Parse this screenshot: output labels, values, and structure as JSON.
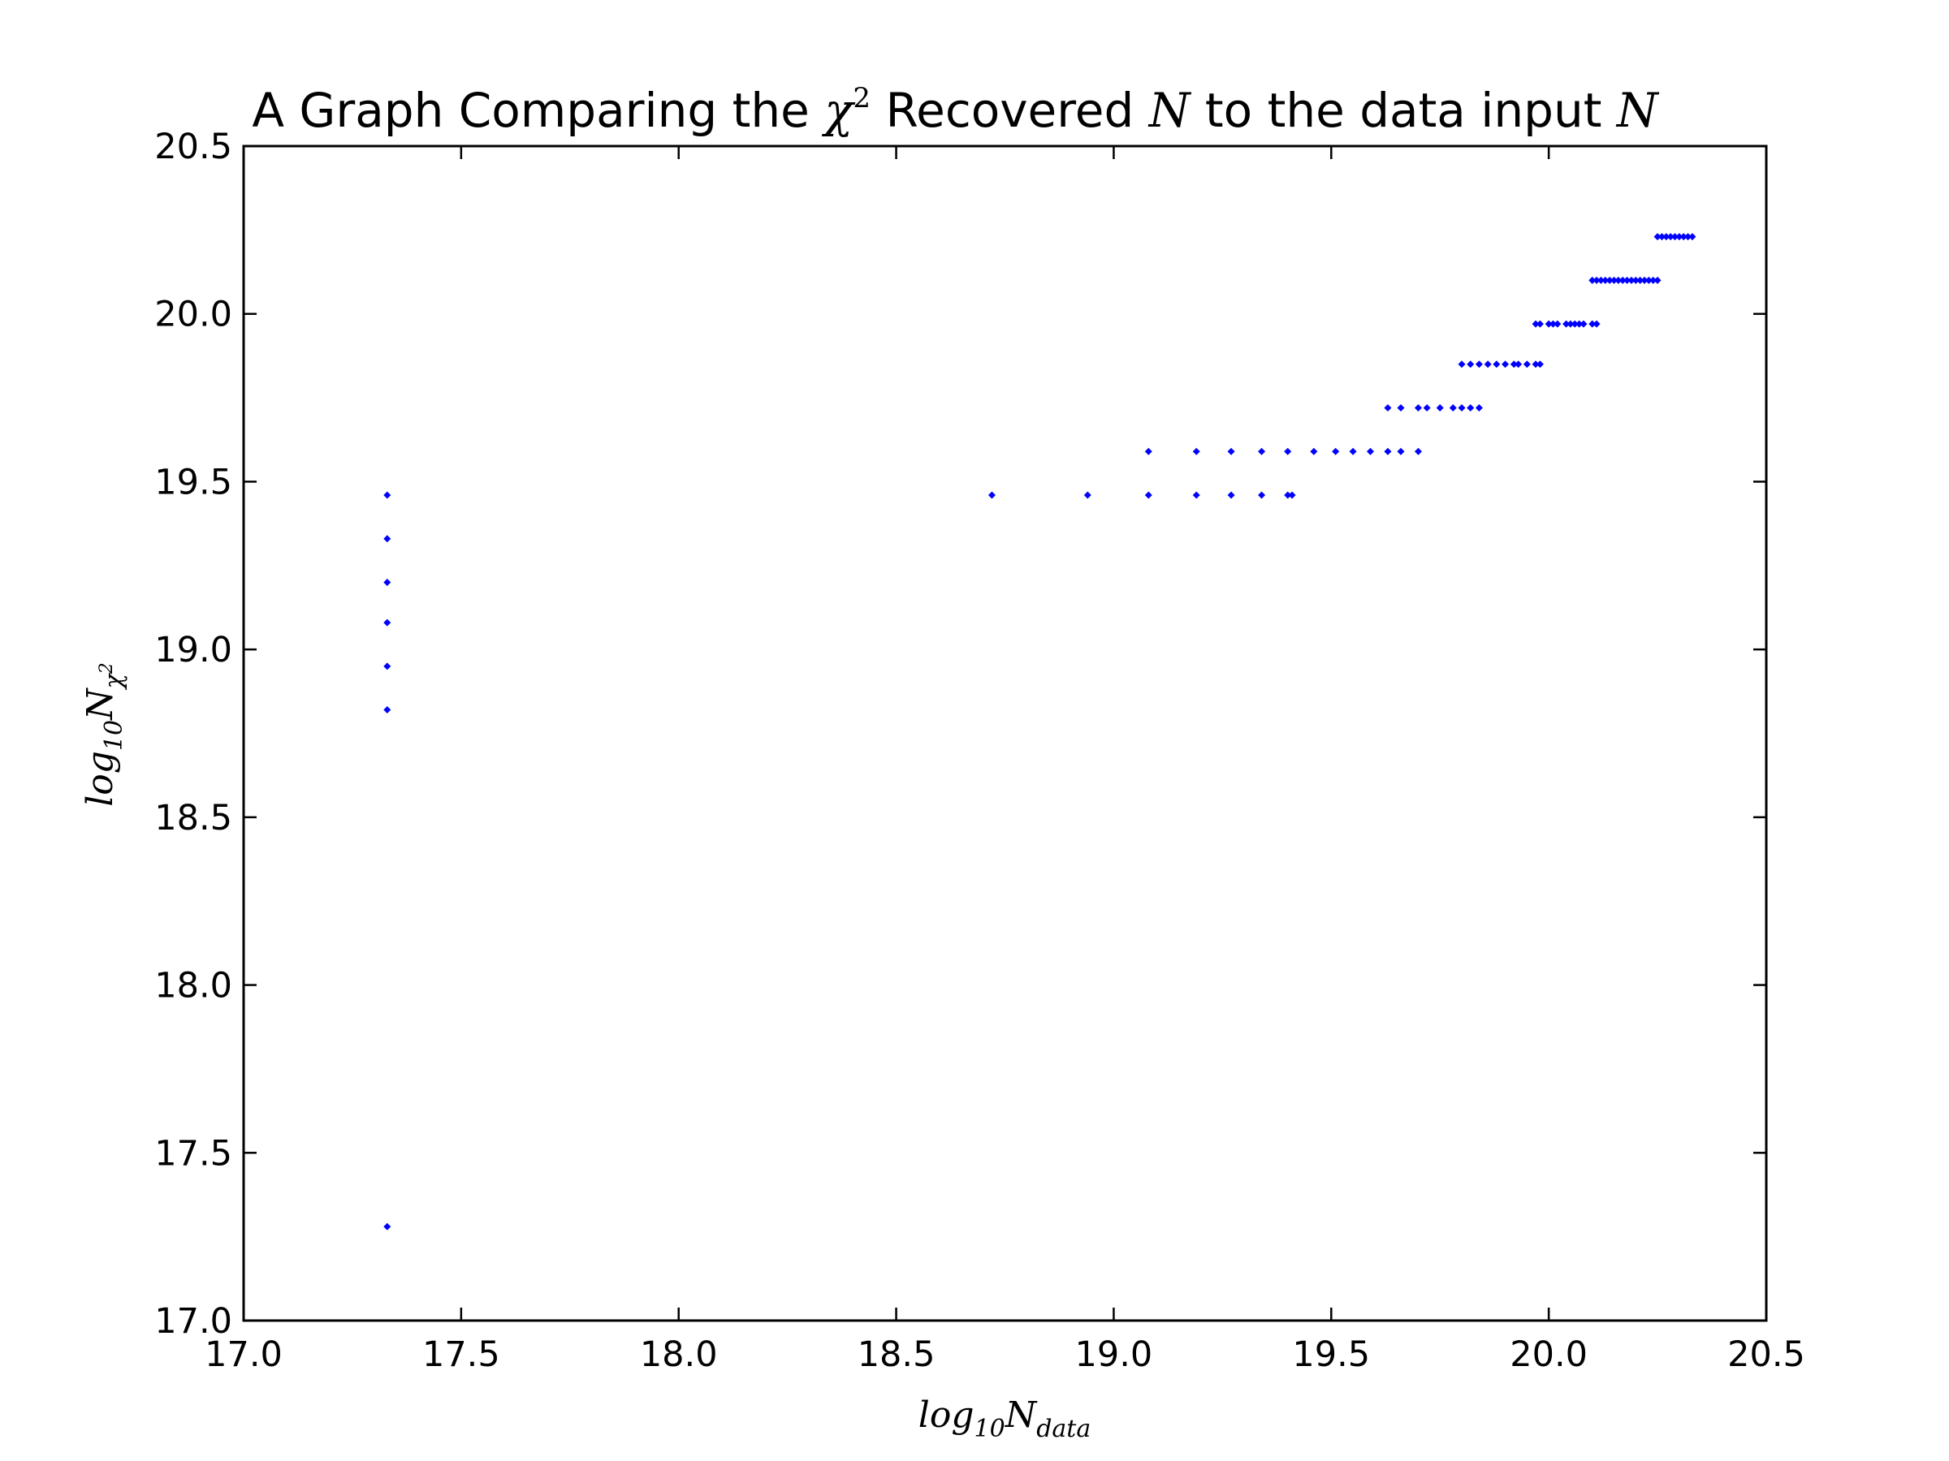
{
  "chart_data": {
    "type": "scatter",
    "title": {
      "prefix": "A Graph Comparing the ",
      "chi": "χ",
      "chi_sup": "2",
      "middle": " Recovered ",
      "N1": "N",
      "suffix": " to the data input ",
      "N2": "N"
    },
    "xlabel": {
      "base": "log",
      "sub1": "10",
      "var": "N",
      "sub2": "data"
    },
    "ylabel": {
      "base": "log",
      "sub1": "10",
      "var": "N",
      "sub2": "χ",
      "sup": "2"
    },
    "xlim": [
      17.0,
      20.5
    ],
    "ylim": [
      17.0,
      20.5
    ],
    "xticks": [
      17.0,
      17.5,
      18.0,
      18.5,
      19.0,
      19.5,
      20.0,
      20.5
    ],
    "yticks": [
      17.0,
      17.5,
      18.0,
      18.5,
      19.0,
      19.5,
      20.0,
      20.5
    ],
    "xtick_labels": [
      "17.0",
      "17.5",
      "18.0",
      "18.5",
      "19.0",
      "19.5",
      "20.0",
      "20.5"
    ],
    "ytick_labels": [
      "17.0",
      "17.5",
      "18.0",
      "18.5",
      "19.0",
      "19.5",
      "20.0",
      "20.5"
    ],
    "grid": false,
    "marker_color": "#0000ff",
    "series": [
      {
        "points": [
          [
            17.33,
            17.28
          ],
          [
            17.33,
            18.82
          ],
          [
            17.33,
            18.95
          ],
          [
            17.33,
            19.08
          ],
          [
            17.33,
            19.2
          ],
          [
            17.33,
            19.33
          ],
          [
            17.33,
            19.46
          ],
          [
            18.72,
            19.46
          ],
          [
            18.94,
            19.46
          ],
          [
            19.08,
            19.46
          ],
          [
            19.19,
            19.46
          ],
          [
            19.27,
            19.46
          ],
          [
            19.34,
            19.46
          ],
          [
            19.4,
            19.46
          ],
          [
            19.41,
            19.46
          ],
          [
            19.08,
            19.59
          ],
          [
            19.19,
            19.59
          ],
          [
            19.27,
            19.59
          ],
          [
            19.34,
            19.59
          ],
          [
            19.4,
            19.59
          ],
          [
            19.46,
            19.59
          ],
          [
            19.51,
            19.59
          ],
          [
            19.55,
            19.59
          ],
          [
            19.59,
            19.59
          ],
          [
            19.63,
            19.59
          ],
          [
            19.66,
            19.59
          ],
          [
            19.7,
            19.59
          ],
          [
            19.63,
            19.72
          ],
          [
            19.66,
            19.72
          ],
          [
            19.7,
            19.72
          ],
          [
            19.72,
            19.72
          ],
          [
            19.75,
            19.72
          ],
          [
            19.78,
            19.72
          ],
          [
            19.8,
            19.72
          ],
          [
            19.82,
            19.72
          ],
          [
            19.84,
            19.72
          ],
          [
            19.8,
            19.85
          ],
          [
            19.82,
            19.85
          ],
          [
            19.84,
            19.85
          ],
          [
            19.86,
            19.85
          ],
          [
            19.88,
            19.85
          ],
          [
            19.9,
            19.85
          ],
          [
            19.92,
            19.85
          ],
          [
            19.93,
            19.85
          ],
          [
            19.95,
            19.85
          ],
          [
            19.97,
            19.85
          ],
          [
            19.98,
            19.85
          ],
          [
            19.97,
            19.97
          ],
          [
            19.98,
            19.97
          ],
          [
            20.0,
            19.97
          ],
          [
            20.01,
            19.97
          ],
          [
            20.02,
            19.97
          ],
          [
            20.04,
            19.97
          ],
          [
            20.05,
            19.97
          ],
          [
            20.06,
            19.97
          ],
          [
            20.07,
            19.97
          ],
          [
            20.08,
            19.97
          ],
          [
            20.1,
            19.97
          ],
          [
            20.11,
            19.97
          ],
          [
            20.1,
            20.1
          ],
          [
            20.11,
            20.1
          ],
          [
            20.12,
            20.1
          ],
          [
            20.13,
            20.1
          ],
          [
            20.14,
            20.1
          ],
          [
            20.15,
            20.1
          ],
          [
            20.16,
            20.1
          ],
          [
            20.17,
            20.1
          ],
          [
            20.18,
            20.1
          ],
          [
            20.19,
            20.1
          ],
          [
            20.2,
            20.1
          ],
          [
            20.21,
            20.1
          ],
          [
            20.22,
            20.1
          ],
          [
            20.23,
            20.1
          ],
          [
            20.24,
            20.1
          ],
          [
            20.25,
            20.1
          ],
          [
            20.25,
            20.23
          ],
          [
            20.26,
            20.23
          ],
          [
            20.27,
            20.23
          ],
          [
            20.28,
            20.23
          ],
          [
            20.29,
            20.23
          ],
          [
            20.3,
            20.23
          ],
          [
            20.31,
            20.23
          ],
          [
            20.32,
            20.23
          ],
          [
            20.33,
            20.23
          ]
        ]
      }
    ]
  }
}
